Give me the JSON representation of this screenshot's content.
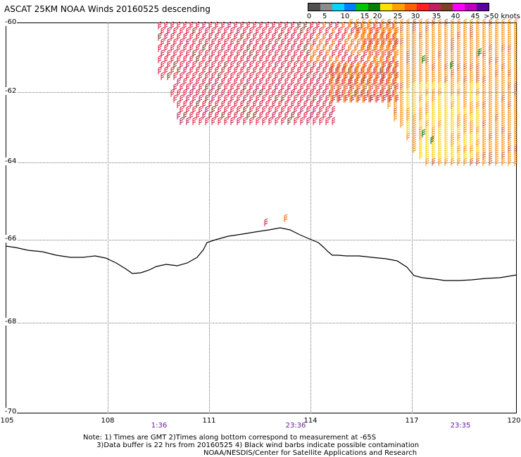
{
  "title": "ASCAT 25KM NOAA Winds 20160525 descending",
  "legend": {
    "colors": [
      "#505050",
      "#8c8c8c",
      "#00d8ff",
      "#0080ff",
      "#00c800",
      "#008000",
      "#ffe000",
      "#ffa000",
      "#ff6000",
      "#ff2020",
      "#c02060",
      "#804020",
      "#ff00ff",
      "#c000c0",
      "#6000a0"
    ],
    "labels": [
      "0",
      "5",
      "10",
      "15",
      "20",
      "25",
      "30",
      "35",
      "40",
      "45",
      ">50 knots"
    ]
  },
  "axes": {
    "lat_ticks": [
      "-60",
      "-62",
      "-64",
      "-66",
      "-68",
      "-70"
    ],
    "lon_ticks": [
      "105",
      "108",
      "111",
      "114",
      "117",
      "120"
    ]
  },
  "times": [
    "1:36",
    "23:36",
    "23:35"
  ],
  "note": {
    "line1": "Note: 1) Times are GMT 2)Times along bottom correspond to measurement at -65S",
    "line2": "      3)Data buffer is 22 hrs from 20160525 4) Black wind barbs indicate possible contamination"
  },
  "credit": "NOAA/NESDIS/Center for Satellite Applications and Research"
}
